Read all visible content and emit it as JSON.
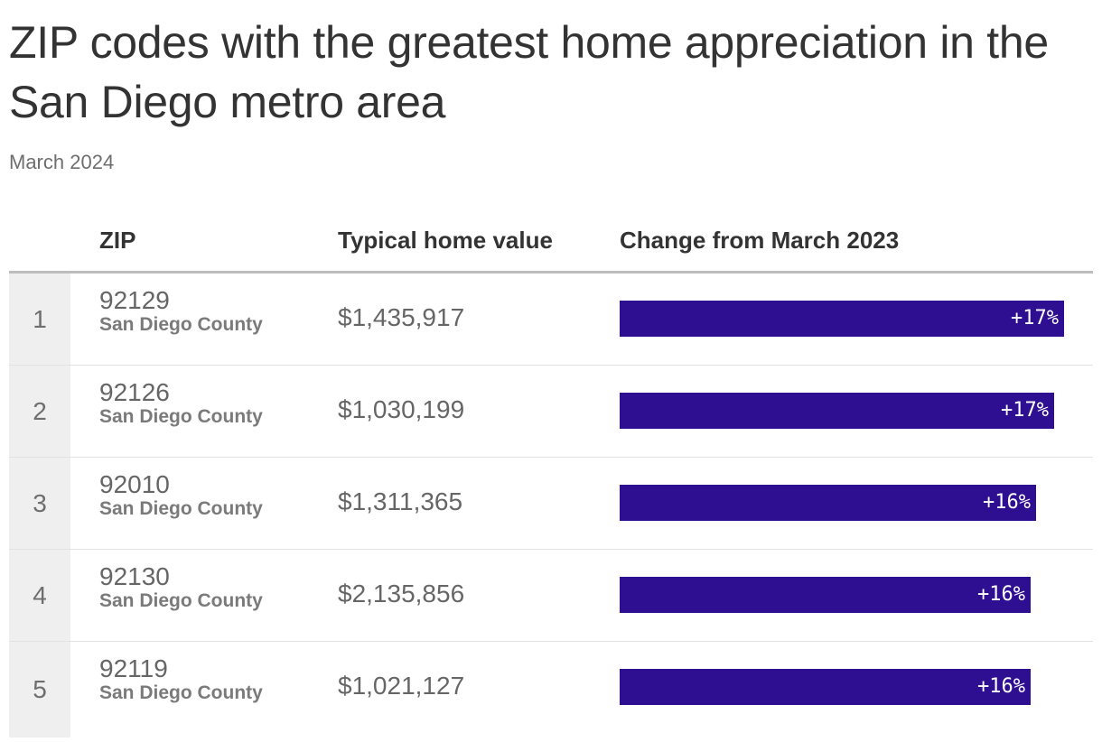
{
  "chart_data": {
    "type": "table",
    "title": "ZIP codes with the greatest home appreciation in the San Diego metro area",
    "subtitle": "March 2024",
    "columns": [
      "",
      "ZIP",
      "Typical home value",
      "Change from March 2023"
    ],
    "bar_color": "#2e0e91",
    "rows": [
      {
        "rank": "1",
        "zip": "92129",
        "county": "San Diego County",
        "value": "$1,435,917",
        "change": 17.3,
        "change_label": "+17%"
      },
      {
        "rank": "2",
        "zip": "92126",
        "county": "San Diego County",
        "value": "$1,030,199",
        "change": 16.9,
        "change_label": "+17%"
      },
      {
        "rank": "3",
        "zip": "92010",
        "county": "San Diego County",
        "value": "$1,311,365",
        "change": 16.2,
        "change_label": "+16%"
      },
      {
        "rank": "4",
        "zip": "92130",
        "county": "San Diego County",
        "value": "$2,135,856",
        "change": 16.0,
        "change_label": "+16%"
      },
      {
        "rank": "5",
        "zip": "92119",
        "county": "San Diego County",
        "value": "$1,021,127",
        "change": 16.0,
        "change_label": "+16%"
      }
    ]
  }
}
